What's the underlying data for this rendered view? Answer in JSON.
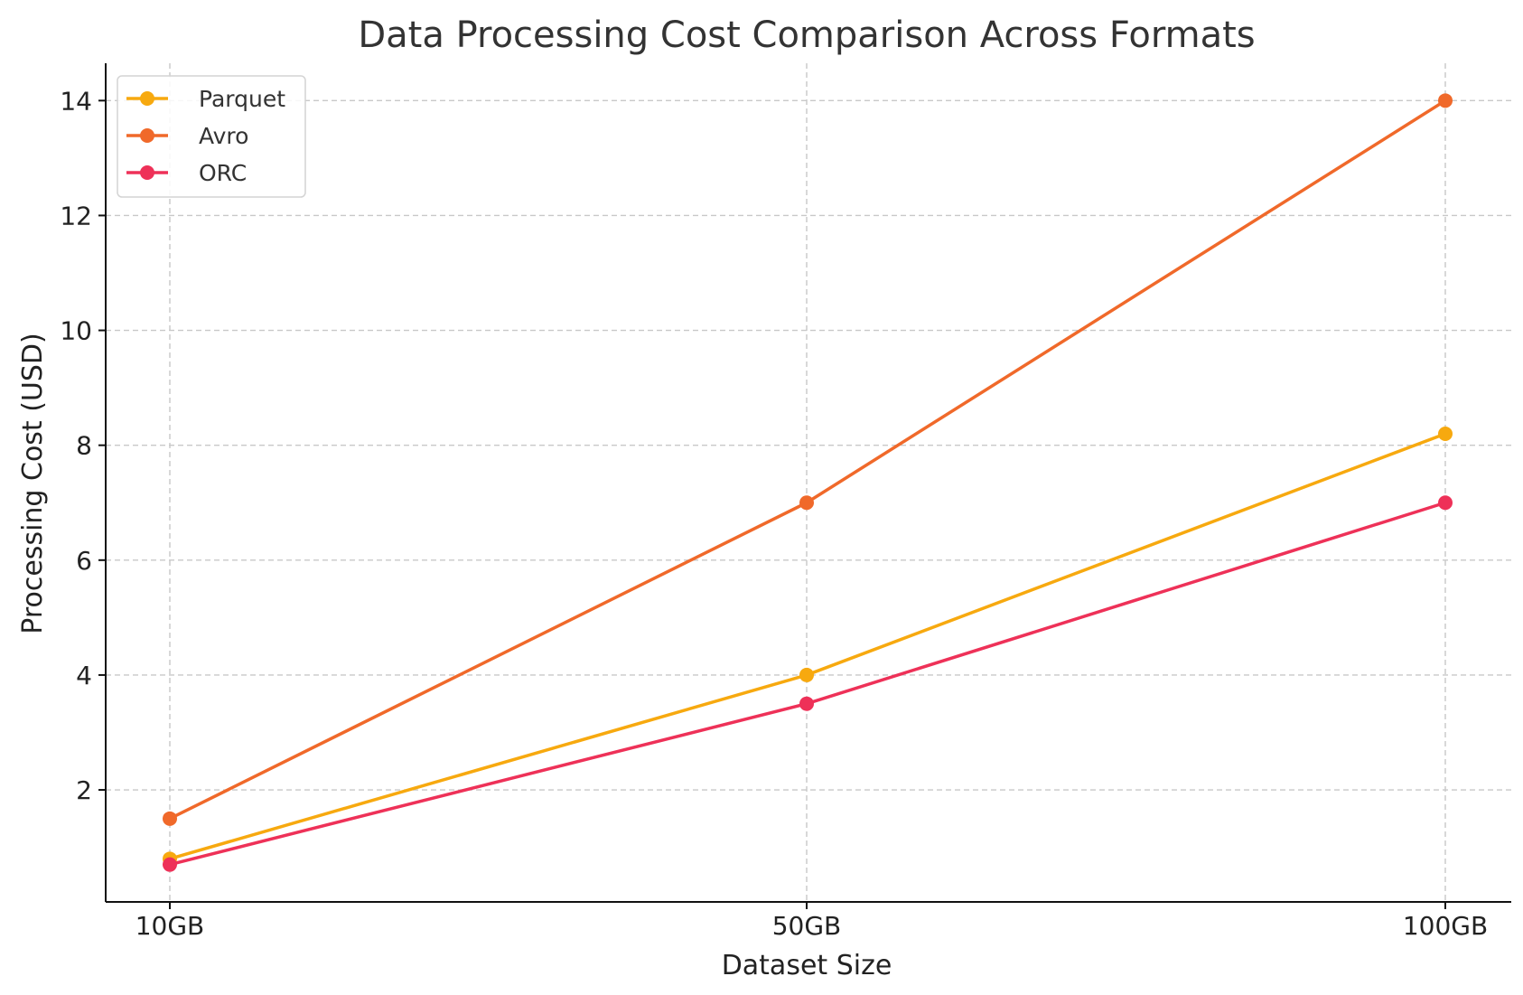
{
  "chart_data": {
    "type": "line",
    "title": "Data Processing Cost Comparison Across Formats",
    "xlabel": "Dataset Size",
    "ylabel": "Processing Cost (USD)",
    "categories": [
      "10GB",
      "50GB",
      "100GB"
    ],
    "series": [
      {
        "name": "Parquet",
        "values": [
          0.8,
          4.0,
          8.2
        ],
        "color": "#f7a90f"
      },
      {
        "name": "Avro",
        "values": [
          1.5,
          7.0,
          14.0
        ],
        "color": "#f0692a"
      },
      {
        "name": "ORC",
        "values": [
          0.7,
          3.5,
          7.0
        ],
        "color": "#ee3158"
      }
    ],
    "ylim": [
      0.05,
      14.65
    ],
    "yticks": [
      2,
      4,
      6,
      8,
      10,
      12,
      14
    ],
    "grid": true,
    "legend_position": "top-left"
  }
}
